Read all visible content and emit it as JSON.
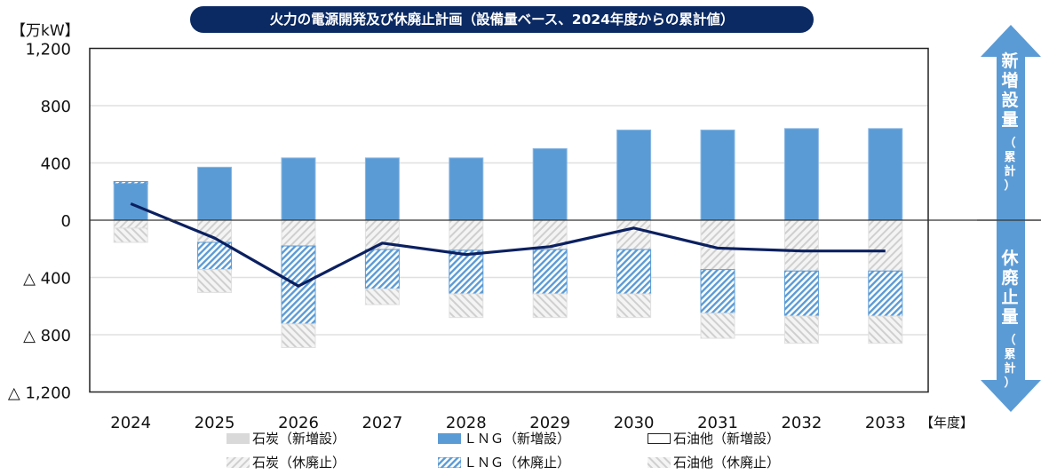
{
  "chart_data": {
    "type": "bar",
    "title": "火力の電源開発及び休廃止計画（設備量ベース、2024年度からの累計値）",
    "ylabel": "【万kW】",
    "xlabel": "【年度】",
    "ylim": [
      -1200,
      1200
    ],
    "yticks": [
      1200,
      800,
      400,
      0,
      -400,
      -800,
      -1200
    ],
    "ytick_labels": [
      "1,200",
      "800",
      "400",
      "0",
      "△ 400",
      "△ 800",
      "△ 1,200"
    ],
    "categories": [
      "2024",
      "2025",
      "2026",
      "2027",
      "2028",
      "2029",
      "2030",
      "2031",
      "2032",
      "2033"
    ],
    "grid": true,
    "legend_position": "bottom",
    "series": [
      {
        "name": "石炭（新増設）",
        "kind": "bar",
        "color": "#d9d9d9",
        "values": [
          0,
          0,
          0,
          0,
          0,
          0,
          0,
          0,
          0,
          0
        ]
      },
      {
        "name": "ＬＮＧ（新増設）",
        "kind": "bar",
        "color": "#5b9bd5",
        "values": [
          255,
          370,
          435,
          435,
          435,
          500,
          630,
          630,
          640,
          640
        ]
      },
      {
        "name": "石油他（新増設）",
        "kind": "bar",
        "color": "#ffffff",
        "values": [
          0,
          0,
          0,
          0,
          0,
          0,
          0,
          0,
          0,
          0
        ]
      },
      {
        "name": "石炭（休廃止）",
        "kind": "bar",
        "color": "#d9d9d9",
        "values": [
          -55,
          -155,
          -180,
          -205,
          -210,
          -205,
          -205,
          -345,
          -355,
          -355
        ]
      },
      {
        "name": "ＬＮＧ（休廃止）",
        "kind": "bar",
        "color": "#5b9bd5",
        "values": [
          15,
          -190,
          -545,
          -275,
          -305,
          -310,
          -310,
          -305,
          -315,
          -315
        ]
      },
      {
        "name": "石油他（休廃止）",
        "kind": "bar",
        "color": "#d9d9d9",
        "values": [
          -100,
          -160,
          -165,
          -110,
          -165,
          -165,
          -165,
          -175,
          -190,
          -190
        ]
      },
      {
        "kind": "line",
        "color": "#0b2060",
        "values": [
          115,
          -125,
          -460,
          -160,
          -240,
          -185,
          -55,
          -195,
          -215,
          -215
        ]
      }
    ]
  },
  "side_arrow": {
    "up_label": [
      "新",
      "増",
      "設",
      "量"
    ],
    "up_note": [
      "（",
      "累",
      "計",
      "）"
    ],
    "down_label": [
      "休",
      "廃",
      "止",
      "量"
    ],
    "down_note": [
      "（",
      "累",
      "計",
      "）"
    ],
    "color": "#5b9bd5"
  }
}
